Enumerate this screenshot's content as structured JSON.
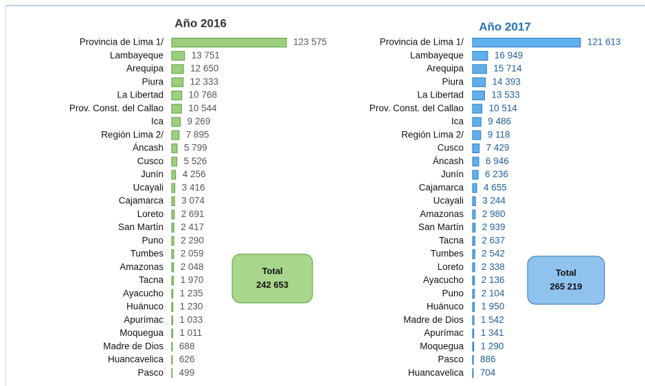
{
  "chart_data": [
    {
      "type": "bar",
      "orientation": "horizontal",
      "title": "Año 2016",
      "color": "#9ccf7e",
      "edge_color": "#5e9e40",
      "categories": [
        "Provincia de Lima 1/",
        "Lambayeque",
        "Arequipa",
        "Piura",
        "La Libertad",
        "Prov. Const. del Callao",
        "Ica",
        "Región Lima 2/",
        "Áncash",
        "Cusco",
        "Junín",
        "Ucayali",
        "Cajamarca",
        "Loreto",
        "San Martín",
        "Puno",
        "Tumbes",
        "Amazonas",
        "Tacna",
        "Ayacucho",
        "Huánuco",
        "Apurímac",
        "Moquegua",
        "Madre de Dios",
        "Huancavelica",
        "Pasco"
      ],
      "values": [
        123575,
        13751,
        12650,
        12333,
        10768,
        10544,
        9269,
        7895,
        5799,
        5526,
        4256,
        3416,
        3074,
        2691,
        2417,
        2290,
        2059,
        2048,
        1970,
        1235,
        1230,
        1033,
        1011,
        688,
        626,
        499
      ],
      "value_labels": [
        "123 575",
        "13 751",
        "12 650",
        "12 333",
        "10 768",
        "10 544",
        "9 269",
        "7 895",
        "5 799",
        "5 526",
        "4 256",
        "3 416",
        "3 074",
        "2 691",
        "2 417",
        "2 290",
        "2 059",
        "2 048",
        "1 970",
        "1 235",
        "1 230",
        "1 033",
        "1 011",
        "688",
        "626",
        "499"
      ],
      "total": {
        "title": "Total",
        "value": 242653,
        "value_label": "242 653",
        "color": "#a8d68c"
      }
    },
    {
      "type": "bar",
      "orientation": "horizontal",
      "title": "Año 2017",
      "color": "#5fb0ec",
      "edge_color": "#2b78c0",
      "categories": [
        "Provincia de Lima 1/",
        "Lambayeque",
        "Arequipa",
        "Piura",
        "La Libertad",
        "Prov. Const. del Callao",
        "Ica",
        "Región Lima 2/",
        "Cusco",
        "Áncash",
        "Junín",
        "Cajamarca",
        "Ucayali",
        "Amazonas",
        "San Martín",
        "Tacna",
        "Tumbes",
        "Loreto",
        "Ayacucho",
        "Puno",
        "Huánuco",
        "Madre de Dios",
        "Apurímac",
        "Moquegua",
        "Pasco",
        "Huancavelica"
      ],
      "values": [
        121613,
        16949,
        15714,
        14393,
        13533,
        10514,
        9486,
        9118,
        7429,
        6946,
        6236,
        4655,
        3244,
        2980,
        2939,
        2637,
        2542,
        2338,
        2136,
        2104,
        1950,
        1542,
        1341,
        1290,
        886,
        704
      ],
      "value_labels": [
        "121 613",
        "16 949",
        "15 714",
        "14 393",
        "13 533",
        "10 514",
        "9 486",
        "9 118",
        "7 429",
        "6 946",
        "6 236",
        "4 655",
        "3 244",
        "2 980",
        "2 939",
        "2 637",
        "2 542",
        "2 338",
        "2 136",
        "2 104",
        "1 950",
        "1 542",
        "1 341",
        "1 290",
        "886",
        "704"
      ],
      "total": {
        "title": "Total",
        "value": 265219,
        "value_label": "265 219",
        "color": "#90c2ee"
      }
    }
  ]
}
